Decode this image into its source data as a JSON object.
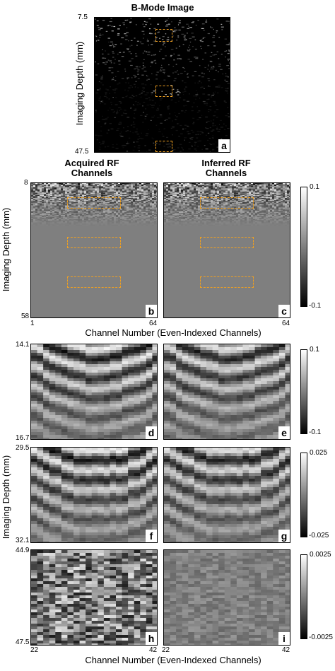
{
  "figure": {
    "panel_a": {
      "title": "B-Mode Image",
      "ylabel": "Imaging Depth (mm)",
      "y_top": "7.5",
      "y_bottom": "47.5",
      "letter": "a"
    },
    "row2": {
      "title_left_line1": "Acquired RF",
      "title_left_line2": "Channels",
      "title_right_line1": "Inferred RF",
      "title_right_line2": "Channels",
      "ylabel": "Imaging Depth (mm)",
      "y_top": "8",
      "y_bottom": "58",
      "x_left": "1",
      "x_right": "64",
      "x_right2": "64",
      "xlabel": "Channel Number (Even-Indexed Channels)",
      "letter_b": "b",
      "letter_c": "c",
      "cbar_top": "0.1",
      "cbar_bottom": "-0.1"
    },
    "zoom1": {
      "y_top": "14.1",
      "y_bottom": "16.7",
      "letter_left": "d",
      "letter_right": "e",
      "cbar_top": "0.1",
      "cbar_bottom": "-0.1"
    },
    "zoom2": {
      "y_top": "29.5",
      "y_bottom": "32.1",
      "letter_left": "f",
      "letter_right": "g",
      "cbar_top": "0.025",
      "cbar_bottom": "-0.025"
    },
    "zoom3": {
      "y_top": "44.9",
      "y_bottom": "47.5",
      "letter_left": "h",
      "letter_right": "i",
      "cbar_top": "0.0025",
      "cbar_bottom": "-0.0025"
    },
    "zoom_ylabel": "Imaging Depth (mm)",
    "zoom_x_left": "22",
    "zoom_x_right": "42",
    "zoom_x_left2": "22",
    "zoom_x_right2": "42",
    "zoom_xlabel": "Channel Number (Even-Indexed Channels)",
    "colors": {
      "highlight_box": "#f0a020",
      "background": "#ffffff",
      "mid_gray": "#7f7f7f"
    }
  }
}
